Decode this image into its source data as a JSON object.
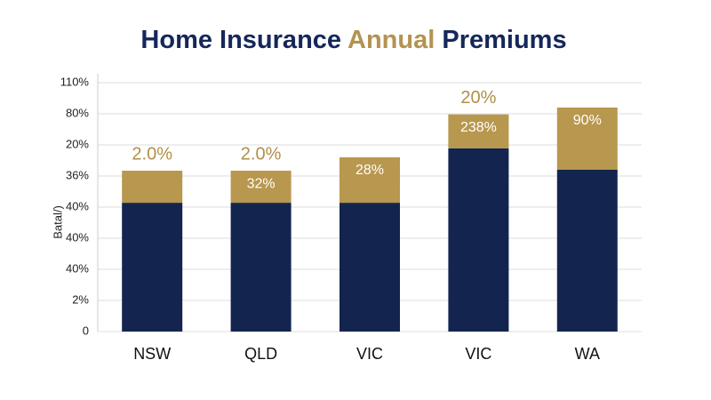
{
  "chart_data": {
    "type": "stacked_bar",
    "title": [
      {
        "text": "Home Insurance ",
        "color": "#15275a"
      },
      {
        "text": "Annual",
        "color": "#b39350"
      },
      {
        "text": " Premiums",
        "color": "#15275a"
      }
    ],
    "y_label": "Batal/)",
    "categories": [
      "NSW",
      "QLD",
      "VIC",
      "VIC",
      "WA"
    ],
    "series": [
      {
        "color": "#13254f",
        "values": [
          4.14,
          4.14,
          4.14,
          5.89,
          5.2
        ]
      },
      {
        "color": "#b8974e",
        "values": [
          1.03,
          1.03,
          1.46,
          1.09,
          2.0
        ]
      }
    ],
    "top_labels": [
      "2.0%",
      "2.0%",
      null,
      "20%",
      null
    ],
    "inside_labels": [
      null,
      "32%",
      "28%",
      "238%",
      "90%"
    ],
    "ylim": [
      0,
      8
    ],
    "yticks": [
      0,
      {
        "value": 1,
        "label": "2%"
      },
      {
        "value": 2,
        "label": "40%"
      },
      {
        "value": 3,
        "label": "40%"
      },
      {
        "value": 4,
        "label": "40%"
      },
      {
        "value": 5,
        "label": "36%"
      },
      {
        "value": 6,
        "label": "20%"
      },
      {
        "value": 7,
        "label": "80%"
      },
      {
        "value": 8,
        "label": "110%"
      }
    ],
    "grid": true
  }
}
